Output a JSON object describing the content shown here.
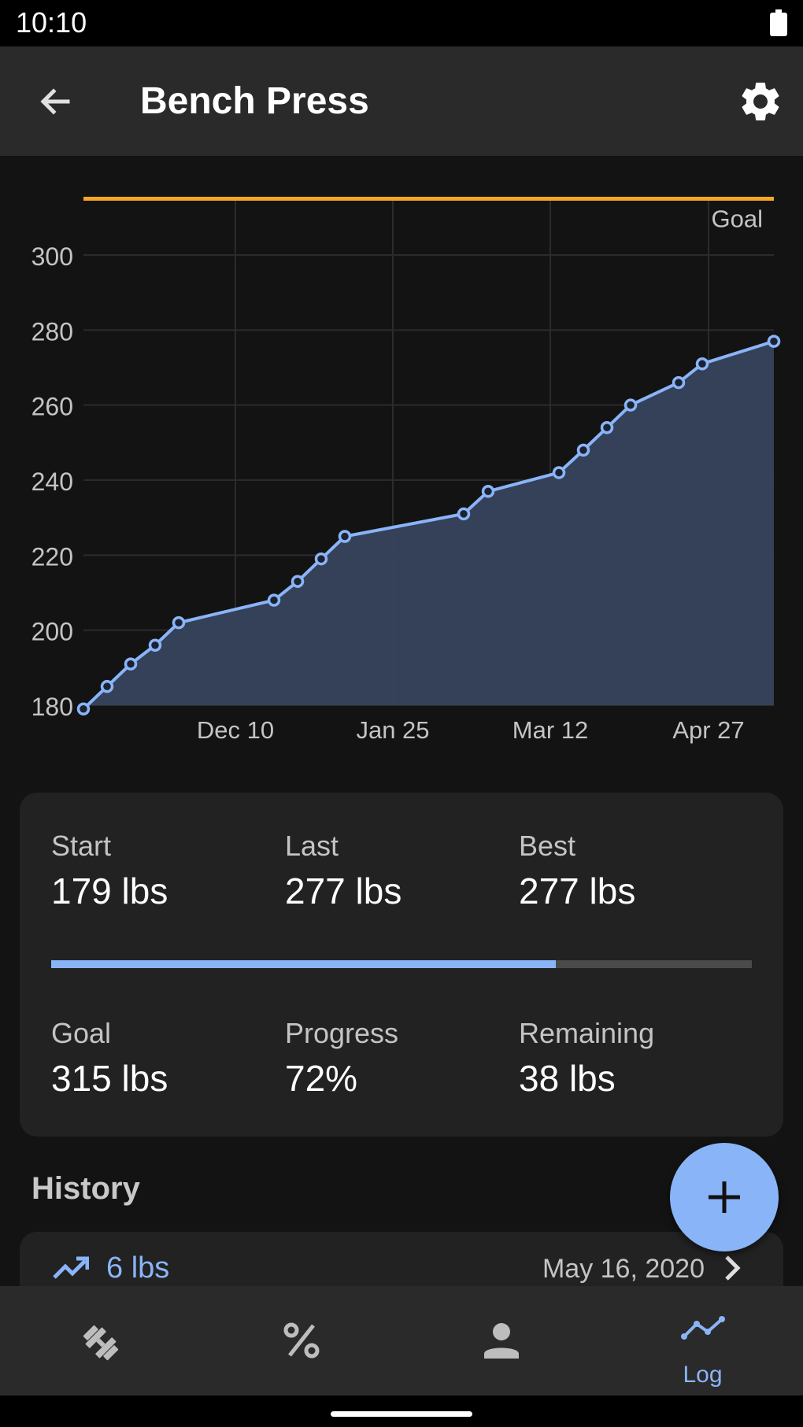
{
  "status_bar": {
    "time": "10:10"
  },
  "app_bar": {
    "title": "Bench Press"
  },
  "chart_data": {
    "type": "area",
    "y_ticks": [
      180,
      200,
      220,
      240,
      260,
      280,
      300
    ],
    "ylim": [
      180,
      315
    ],
    "x_ticks": [
      "Dec 10",
      "Jan 25",
      "Mar 12",
      "Apr 27"
    ],
    "goal": {
      "label": "Goal",
      "value": 315
    },
    "series": [
      {
        "values": [
          179,
          185,
          191,
          196,
          202,
          208,
          213,
          219,
          225,
          231,
          237,
          242,
          248,
          254,
          260,
          266,
          271,
          277
        ]
      }
    ],
    "colors": {
      "line": "#8ab4f8",
      "fill": "#36435c",
      "goal": "#f5a623",
      "grid": "#2b2b2b"
    }
  },
  "stats": {
    "start": {
      "label": "Start",
      "value": "179 lbs"
    },
    "last": {
      "label": "Last",
      "value": "277 lbs"
    },
    "best": {
      "label": "Best",
      "value": "277 lbs"
    },
    "goal": {
      "label": "Goal",
      "value": "315 lbs"
    },
    "progress": {
      "label": "Progress",
      "value": "72%"
    },
    "remaining": {
      "label": "Remaining",
      "value": "38 lbs"
    },
    "progress_fraction": 0.72
  },
  "history": {
    "heading": "History",
    "items": [
      {
        "delta": "6 lbs",
        "date": "May 16, 2020",
        "icon": "trending-up-icon"
      }
    ]
  },
  "fab": {
    "icon": "plus-icon"
  },
  "bottom_nav": {
    "items": [
      {
        "icon": "dumbbell-icon",
        "label": ""
      },
      {
        "icon": "percent-icon",
        "label": ""
      },
      {
        "icon": "person-icon",
        "label": ""
      },
      {
        "icon": "progress-chart-icon",
        "label": "Log",
        "active": true
      }
    ]
  }
}
